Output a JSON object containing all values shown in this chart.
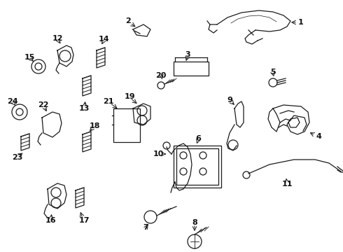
{
  "bg_color": "#ffffff",
  "fig_width": 4.9,
  "fig_height": 3.6,
  "dpi": 100,
  "image_data": ""
}
